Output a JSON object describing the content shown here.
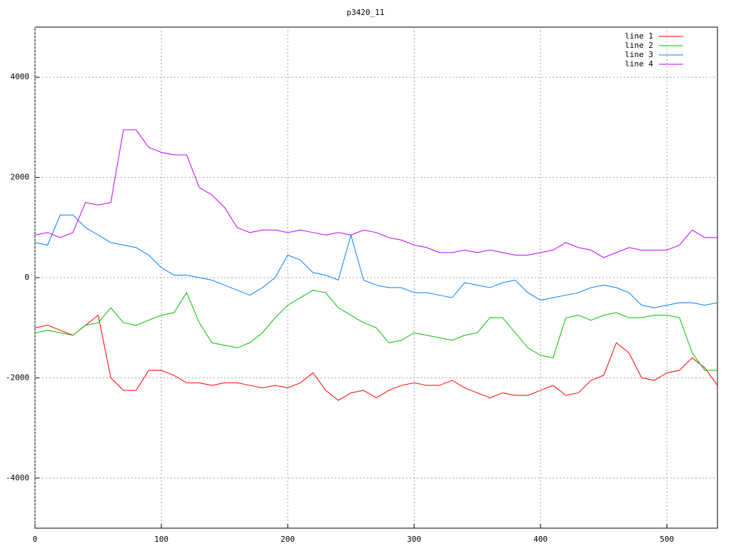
{
  "chart_data": {
    "type": "line",
    "title": "p3420_11",
    "x": [
      0,
      10,
      20,
      30,
      40,
      50,
      60,
      70,
      80,
      90,
      100,
      110,
      120,
      130,
      140,
      150,
      160,
      170,
      180,
      190,
      200,
      210,
      220,
      230,
      240,
      250,
      260,
      270,
      280,
      290,
      300,
      310,
      320,
      330,
      340,
      350,
      360,
      370,
      380,
      390,
      400,
      410,
      420,
      430,
      440,
      450,
      460,
      470,
      480,
      490,
      500,
      510,
      520,
      530,
      540
    ],
    "series": [
      {
        "name": "line 1",
        "color": "#ff0000",
        "values": [
          -1000,
          -950,
          -1050,
          -1150,
          -950,
          -750,
          -2000,
          -2250,
          -2250,
          -1850,
          -1850,
          -1950,
          -2100,
          -2100,
          -2150,
          -2100,
          -2100,
          -2150,
          -2200,
          -2150,
          -2200,
          -2100,
          -1900,
          -2250,
          -2450,
          -2300,
          -2250,
          -2400,
          -2250,
          -2150,
          -2100,
          -2150,
          -2150,
          -2050,
          -2200,
          -2300,
          -2400,
          -2300,
          -2350,
          -2350,
          -2250,
          -2150,
          -2350,
          -2300,
          -2050,
          -1950,
          -1300,
          -1500,
          -2000,
          -2050,
          -1900,
          -1850,
          -1600,
          -1800,
          -2150
        ]
      },
      {
        "name": "line 2",
        "color": "#00c000",
        "values": [
          -1100,
          -1050,
          -1100,
          -1150,
          -950,
          -900,
          -600,
          -900,
          -950,
          -850,
          -750,
          -700,
          -300,
          -900,
          -1300,
          -1350,
          -1400,
          -1300,
          -1100,
          -800,
          -550,
          -400,
          -250,
          -300,
          -600,
          -750,
          -900,
          -1000,
          -1300,
          -1250,
          -1100,
          -1150,
          -1200,
          -1250,
          -1150,
          -1100,
          -800,
          -800,
          -1100,
          -1400,
          -1550,
          -1600,
          -800,
          -750,
          -850,
          -750,
          -700,
          -800,
          -800,
          -750,
          -750,
          -800,
          -1500,
          -1850,
          -1850
        ]
      },
      {
        "name": "line 3",
        "color": "#0080ff",
        "values": [
          700,
          650,
          1250,
          1250,
          1000,
          850,
          700,
          650,
          600,
          450,
          200,
          50,
          50,
          0,
          -50,
          -150,
          -250,
          -350,
          -200,
          0,
          450,
          350,
          100,
          50,
          -50,
          850,
          -50,
          -150,
          -200,
          -200,
          -300,
          -300,
          -350,
          -400,
          -100,
          -150,
          -200,
          -100,
          -50,
          -300,
          -450,
          -400,
          -350,
          -300,
          -200,
          -150,
          -200,
          -300,
          -550,
          -600,
          -550,
          -500,
          -500,
          -550,
          -500
        ]
      },
      {
        "name": "line 4",
        "color": "#c000ff",
        "values": [
          850,
          900,
          800,
          900,
          1500,
          1450,
          1500,
          2950,
          2950,
          2600,
          2500,
          2450,
          2450,
          1800,
          1650,
          1400,
          1000,
          900,
          950,
          950,
          900,
          950,
          900,
          850,
          900,
          850,
          950,
          900,
          800,
          750,
          650,
          600,
          500,
          500,
          550,
          500,
          550,
          500,
          450,
          450,
          500,
          550,
          700,
          600,
          550,
          400,
          500,
          600,
          550,
          550,
          550,
          650,
          950,
          800,
          800
        ]
      }
    ],
    "xlim": [
      0,
      540
    ],
    "xticks": [
      0,
      100,
      200,
      300,
      400,
      500
    ],
    "ylim": [
      -5000,
      5000
    ],
    "yticks": [
      -4000,
      -2000,
      0,
      2000,
      4000
    ],
    "grid": true,
    "legend": "top-right"
  }
}
